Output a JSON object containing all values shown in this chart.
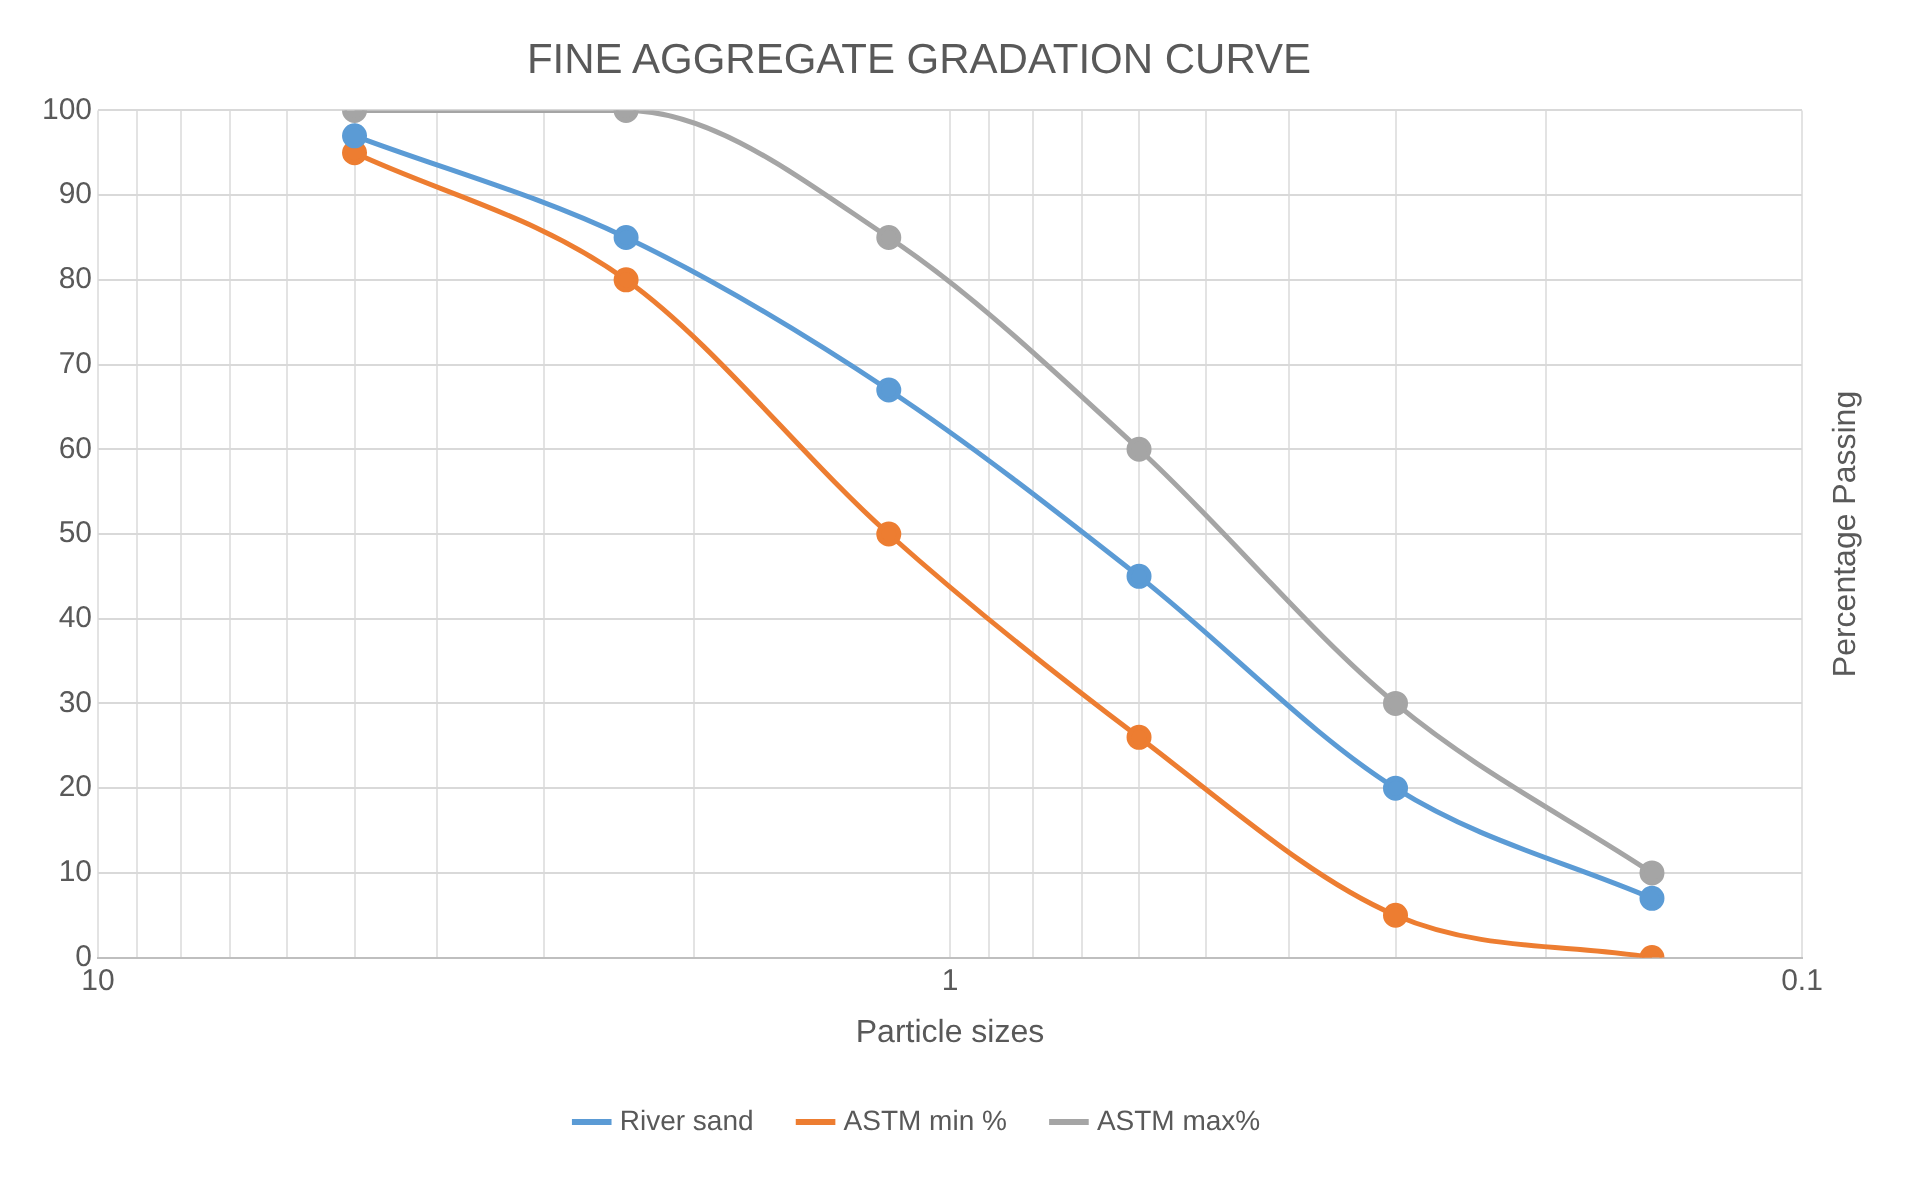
{
  "chart_data": {
    "type": "line",
    "title": "FINE AGGREGATE GRADATION CURVE",
    "xlabel": "Particle sizes",
    "ylabel": "Percentage Passing",
    "x": [
      5,
      2.4,
      1.18,
      0.6,
      0.3,
      0.15
    ],
    "series": [
      {
        "name": "River sand",
        "color": "#5b9bd5",
        "values": [
          97,
          85,
          67,
          45,
          20,
          7
        ]
      },
      {
        "name": "ASTM min %",
        "color": "#ed7d31",
        "values": [
          95,
          80,
          50,
          26,
          5,
          0
        ]
      },
      {
        "name": "ASTM max%",
        "color": "#a5a5a5",
        "values": [
          100,
          100,
          85,
          60,
          30,
          10
        ]
      }
    ],
    "log": "x",
    "xlim": [
      10,
      0.1
    ],
    "xticks": [
      10,
      {
        "value": 9,
        "label": null
      },
      {
        "value": 8,
        "label": null
      },
      {
        "value": 7,
        "label": null
      },
      {
        "value": 6,
        "label": null
      },
      {
        "value": 5,
        "label": null
      },
      {
        "value": 4,
        "label": null
      },
      {
        "value": 3,
        "label": null
      },
      {
        "value": 2,
        "label": null
      },
      1,
      {
        "value": 0.9,
        "label": null
      },
      {
        "value": 0.8,
        "label": null
      },
      {
        "value": 0.7,
        "label": null
      },
      {
        "value": 0.6,
        "label": null
      },
      {
        "value": 0.5,
        "label": null
      },
      {
        "value": 0.4,
        "label": null
      },
      {
        "value": 0.3,
        "label": null
      },
      {
        "value": 0.2,
        "label": null
      },
      0.1
    ],
    "ylim": [
      0,
      100
    ],
    "yticks": [
      0,
      10,
      20,
      30,
      40,
      50,
      60,
      70,
      80,
      90,
      100
    ],
    "grid": true,
    "legend": "bottom",
    "marker": "circle",
    "line_style": "solid"
  }
}
